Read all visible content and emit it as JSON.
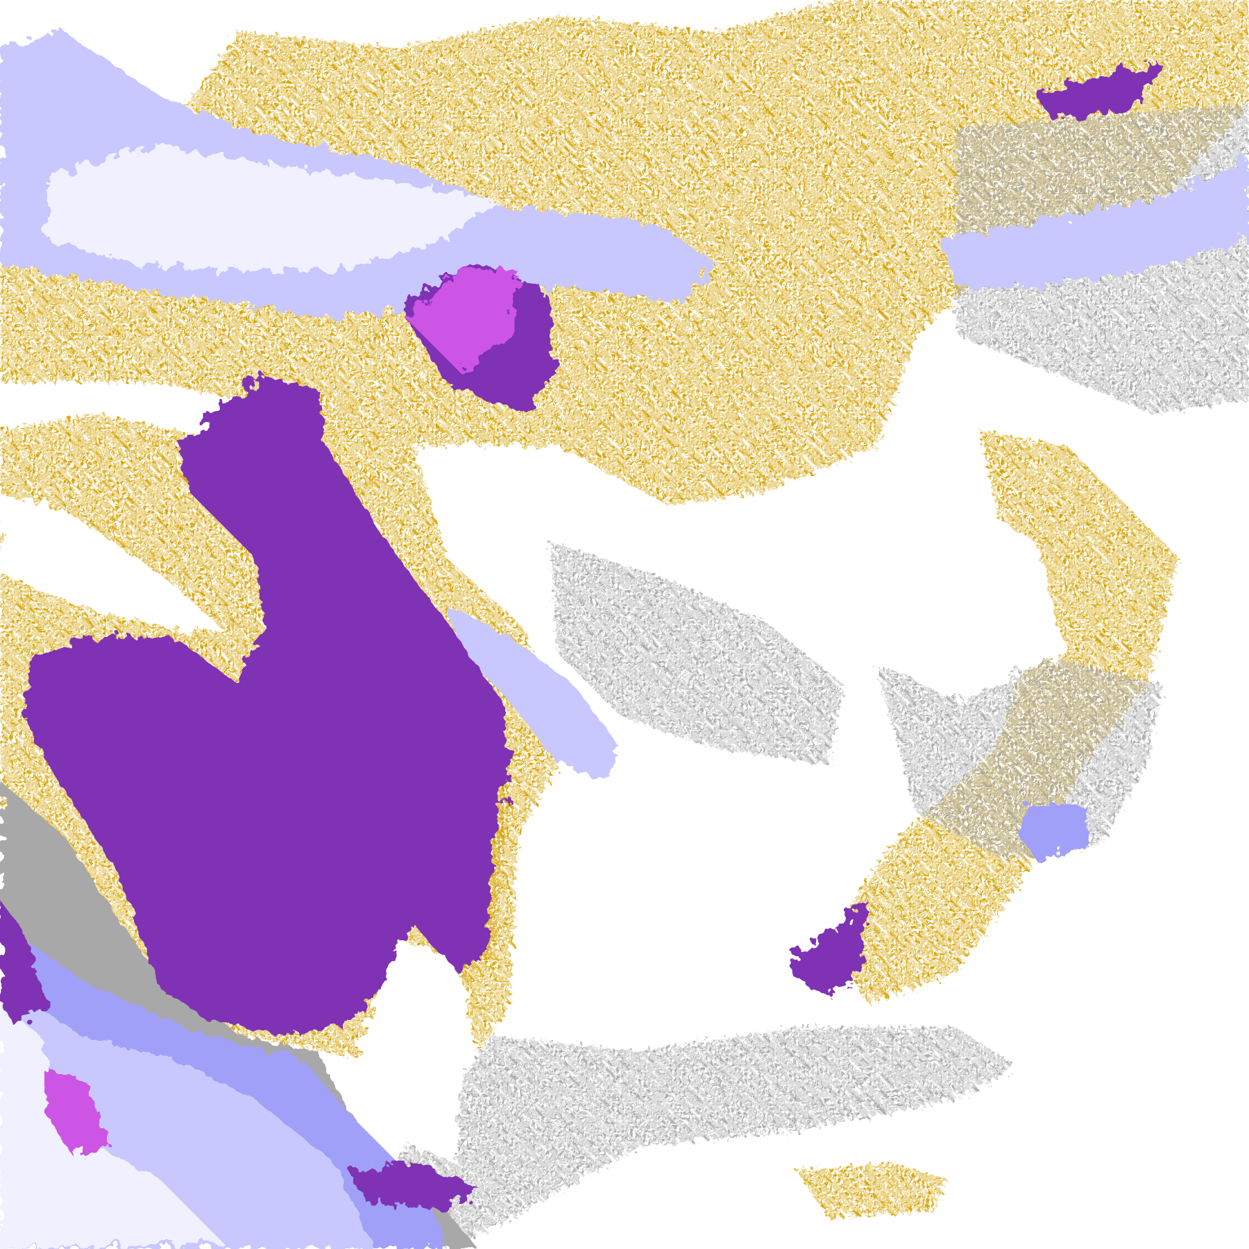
{
  "map": {
    "legend_colors": {
      "background": "#ffffff",
      "gold": "#d4a200",
      "purple": "#7f33b3",
      "magenta": "#cc55e6",
      "lavender": "#c8c8ff",
      "periwinkle": "#a0a0f8",
      "pale": "#f0f0ff",
      "grey": "#a8a8a8"
    }
  }
}
